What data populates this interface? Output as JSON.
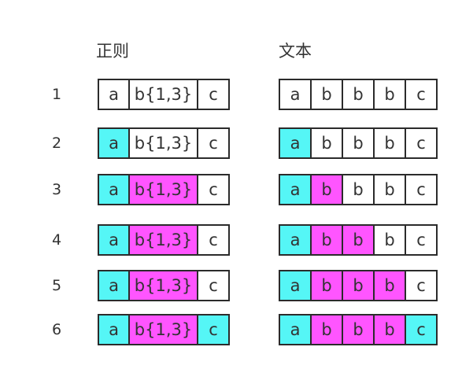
{
  "headers": {
    "regex": "正则",
    "text": "文本"
  },
  "colors": {
    "cyan": "#55f6f6",
    "magenta": "#ff55ff",
    "none": "#ffffff",
    "border": "#2b2b2b"
  },
  "rows": [
    {
      "num": "1",
      "regex": [
        {
          "label": "a",
          "fill": "none"
        },
        {
          "label": "b{1,3}",
          "fill": "none"
        },
        {
          "label": "c",
          "fill": "none"
        }
      ],
      "text": [
        {
          "label": "a",
          "fill": "none"
        },
        {
          "label": "b",
          "fill": "none"
        },
        {
          "label": "b",
          "fill": "none"
        },
        {
          "label": "b",
          "fill": "none"
        },
        {
          "label": "c",
          "fill": "none"
        }
      ]
    },
    {
      "num": "2",
      "regex": [
        {
          "label": "a",
          "fill": "cyan"
        },
        {
          "label": "b{1,3}",
          "fill": "none"
        },
        {
          "label": "c",
          "fill": "none"
        }
      ],
      "text": [
        {
          "label": "a",
          "fill": "cyan"
        },
        {
          "label": "b",
          "fill": "none"
        },
        {
          "label": "b",
          "fill": "none"
        },
        {
          "label": "b",
          "fill": "none"
        },
        {
          "label": "c",
          "fill": "none"
        }
      ]
    },
    {
      "num": "3",
      "regex": [
        {
          "label": "a",
          "fill": "cyan"
        },
        {
          "label": "b{1,3}",
          "fill": "magenta"
        },
        {
          "label": "c",
          "fill": "none"
        }
      ],
      "text": [
        {
          "label": "a",
          "fill": "cyan"
        },
        {
          "label": "b",
          "fill": "magenta"
        },
        {
          "label": "b",
          "fill": "none"
        },
        {
          "label": "b",
          "fill": "none"
        },
        {
          "label": "c",
          "fill": "none"
        }
      ]
    },
    {
      "num": "4",
      "regex": [
        {
          "label": "a",
          "fill": "cyan"
        },
        {
          "label": "b{1,3}",
          "fill": "magenta"
        },
        {
          "label": "c",
          "fill": "none"
        }
      ],
      "text": [
        {
          "label": "a",
          "fill": "cyan"
        },
        {
          "label": "b",
          "fill": "magenta"
        },
        {
          "label": "b",
          "fill": "magenta"
        },
        {
          "label": "b",
          "fill": "none"
        },
        {
          "label": "c",
          "fill": "none"
        }
      ]
    },
    {
      "num": "5",
      "regex": [
        {
          "label": "a",
          "fill": "cyan"
        },
        {
          "label": "b{1,3}",
          "fill": "magenta"
        },
        {
          "label": "c",
          "fill": "none"
        }
      ],
      "text": [
        {
          "label": "a",
          "fill": "cyan"
        },
        {
          "label": "b",
          "fill": "magenta"
        },
        {
          "label": "b",
          "fill": "magenta"
        },
        {
          "label": "b",
          "fill": "magenta"
        },
        {
          "label": "c",
          "fill": "none"
        }
      ]
    },
    {
      "num": "6",
      "regex": [
        {
          "label": "a",
          "fill": "cyan"
        },
        {
          "label": "b{1,3}",
          "fill": "magenta"
        },
        {
          "label": "c",
          "fill": "cyan"
        }
      ],
      "text": [
        {
          "label": "a",
          "fill": "cyan"
        },
        {
          "label": "b",
          "fill": "magenta"
        },
        {
          "label": "b",
          "fill": "magenta"
        },
        {
          "label": "b",
          "fill": "magenta"
        },
        {
          "label": "c",
          "fill": "cyan"
        }
      ]
    }
  ]
}
